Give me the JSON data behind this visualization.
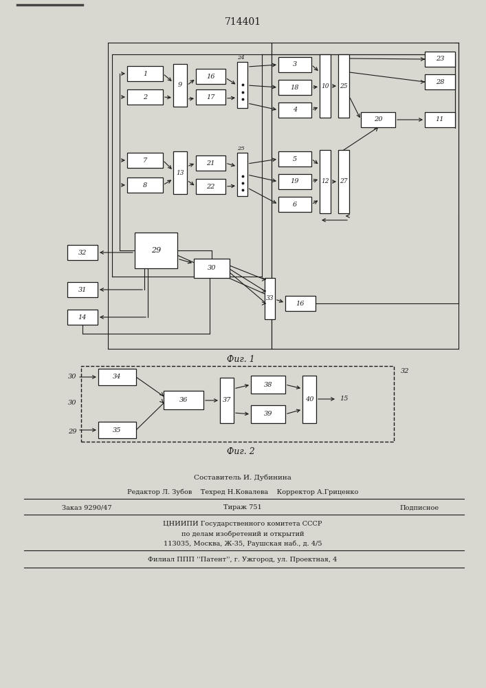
{
  "title": "714401",
  "fig1_caption": "Фиг. 1",
  "fig2_caption": "Фиг. 2",
  "background_color": "#d8d8d0",
  "line_color": "#1a1a1a",
  "box_color": "#ffffff",
  "footer": {
    "line1": "Составитель И. Дубинина",
    "line2": "Редактор Л. Зубов    Техред Н.Ковалева    Корректор А.Гриценко",
    "line3_left": "Заказ 9290/47",
    "line3_mid": "Тираж 751",
    "line3_right": "Подписное",
    "line4": "ЦНИИПИ Государственного комитета СССР",
    "line5": "по делам изобретений и открытий",
    "line6": "113035, Москва, Ж-35, Раушская наб., д. 4/5",
    "line7": "Филиал ППП ''Патент'', г. Ужгород, ул. Проектная, 4"
  }
}
